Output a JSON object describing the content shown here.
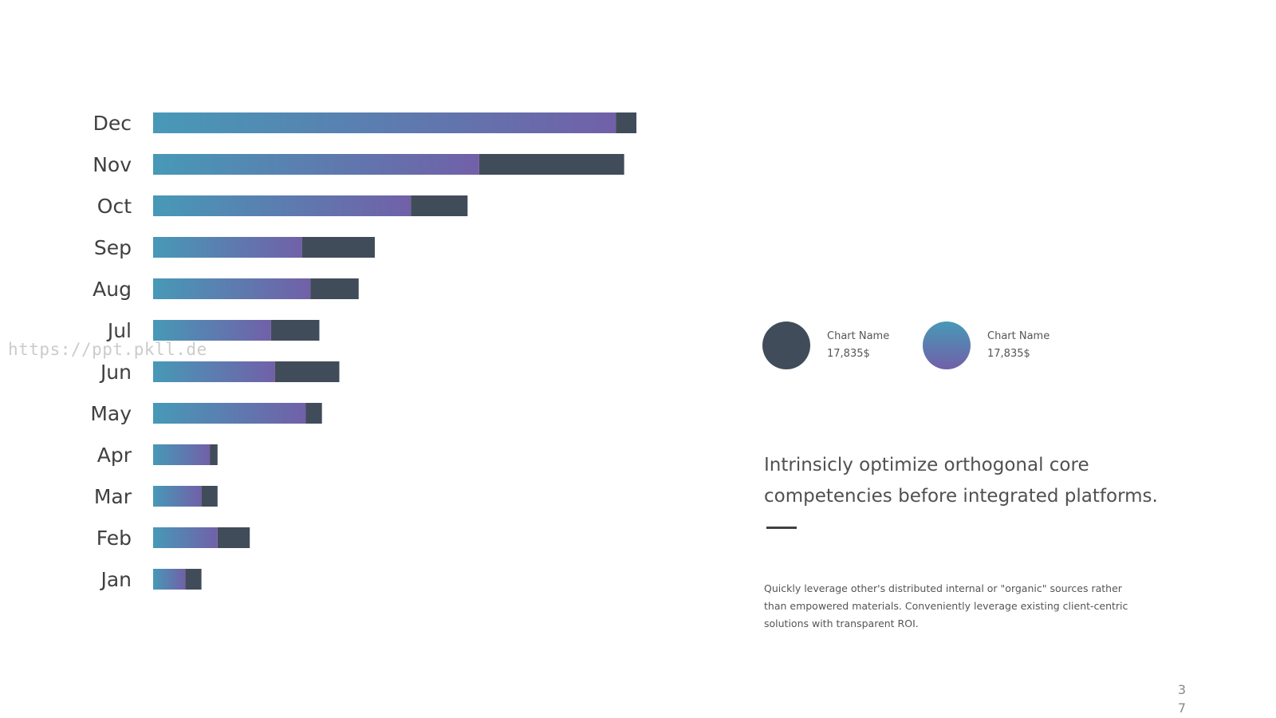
{
  "watermark": "https://ppt.pkll.de",
  "chart_data": {
    "type": "bar",
    "orientation": "horizontal",
    "stacked": true,
    "categories": [
      "Jan",
      "Feb",
      "Mar",
      "Apr",
      "May",
      "Jun",
      "Jul",
      "Aug",
      "Sep",
      "Oct",
      "Nov",
      "Dec"
    ],
    "series": [
      {
        "values": [
          5,
          10,
          7.5,
          8.8,
          23.7,
          18.9,
          18.3,
          24.4,
          23.1,
          40,
          50.6,
          71.8
        ]
      },
      {
        "values": [
          2.5,
          5,
          2.5,
          1.2,
          2.5,
          10,
          7.5,
          7.5,
          11.3,
          8.8,
          22.5,
          3.2
        ]
      }
    ],
    "xlim": [
      0,
      100
    ],
    "grid": false,
    "colors": {
      "gradient_start": "#4799B7",
      "gradient_end": "#7160A8",
      "dark": "#414C5A"
    }
  },
  "legend": [
    {
      "name": "Chart Name",
      "value": "17,835$",
      "color": "#414C5A"
    },
    {
      "name": "Chart Name",
      "value": "17,835$",
      "color": "gradient"
    }
  ],
  "headline": "Intrinsicly optimize orthogonal core competencies before integrated platforms.",
  "body": "Quickly leverage other's distributed internal or \"organic\" sources rather than empowered materials. Conveniently leverage existing client-centric solutions with transparent ROI.",
  "page_number": {
    "line1": "3",
    "line2": "7"
  }
}
